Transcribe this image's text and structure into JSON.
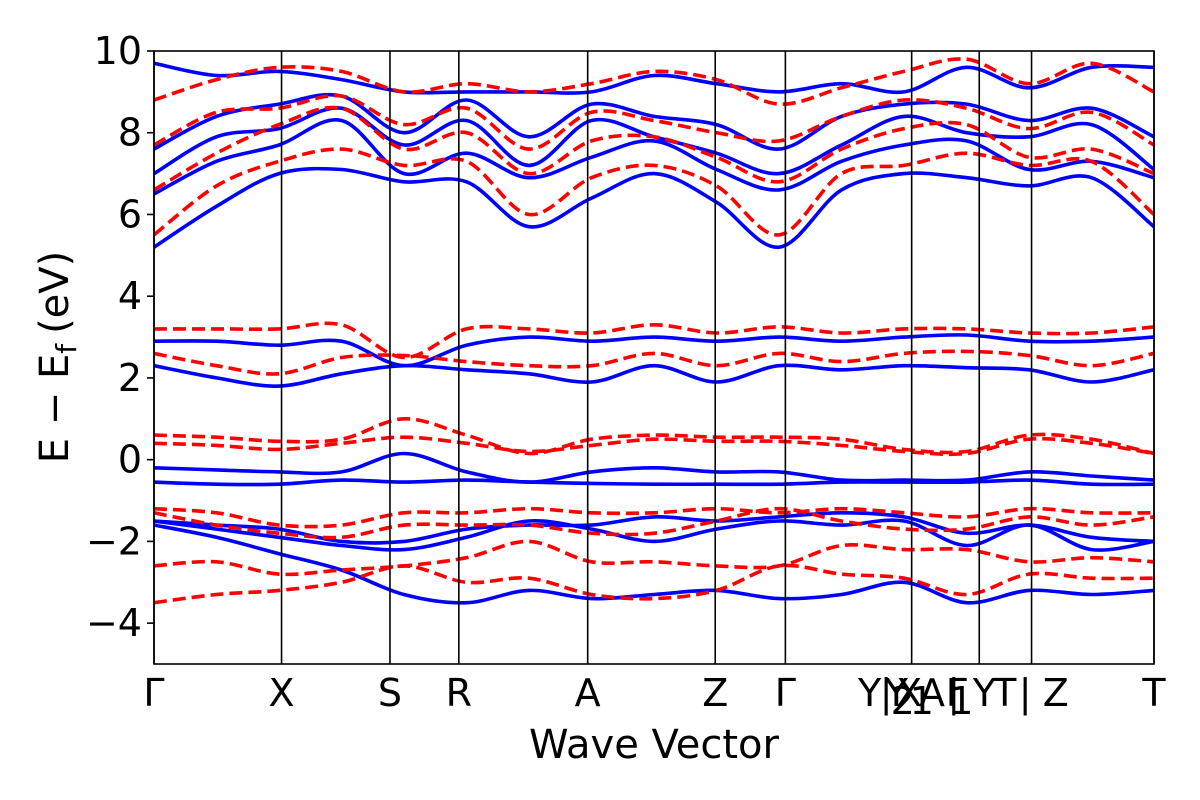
{
  "chart_data": {
    "type": "line",
    "xlabel": "Wave Vector",
    "ylabel": "E − E",
    "ylabel_sub": "f",
    "ylabel_unit": "(eV)",
    "ylim": [
      -5,
      10
    ],
    "y_ticks": [
      -4,
      -2,
      0,
      2,
      4,
      6,
      8,
      10
    ],
    "y_tick_labels": [
      "−4",
      "−2",
      "0",
      "2",
      "4",
      "6",
      "8",
      "10"
    ],
    "k_points": [
      {
        "label": "Γ",
        "x": 0.0
      },
      {
        "label": "X",
        "x": 1.0
      },
      {
        "label": "S",
        "x": 1.85
      },
      {
        "label": "R",
        "x": 2.39
      },
      {
        "label": "A",
        "x": 3.4
      },
      {
        "label": "Z",
        "x": 4.4
      },
      {
        "label": "Γ",
        "x": 4.95
      },
      {
        "label": "Y",
        "x": 5.61
      },
      {
        "label": "|",
        "x": 5.74
      },
      {
        "label": "Y",
        "x": 5.82
      },
      {
        "label": "2",
        "x": 5.87
      },
      {
        "label": "X",
        "x": 5.92
      },
      {
        "label": "1",
        "x": 6.02
      },
      {
        "label": "A",
        "x": 6.1
      },
      {
        "label": "Γ",
        "x": 6.29
      },
      {
        "label": "1",
        "x": 6.33
      },
      {
        "label": "|",
        "x": 6.27
      },
      {
        "label": "Y",
        "x": 6.51
      },
      {
        "label": "T",
        "x": 6.67
      },
      {
        "label": "|",
        "x": 6.83
      },
      {
        "label": "Z",
        "x": 7.07
      },
      {
        "label": "T",
        "x": 7.84
      }
    ],
    "vlines": [
      0.0,
      1.0,
      1.85,
      2.39,
      3.4,
      4.4,
      4.95,
      5.94,
      6.47,
      6.88,
      7.84
    ],
    "segment_breaks": [
      6.88
    ],
    "xlim": [
      0.0,
      7.84
    ],
    "colors": {
      "series_a": "#0000ff",
      "series_b": "#ff0000",
      "vlines": "#000000"
    },
    "series": [
      {
        "style": "solid",
        "color": "#0000ff",
        "bands": [
          [
            -1.6,
            -1.9,
            -2.3,
            -2.7,
            -3.3,
            -3.5,
            -3.2,
            -3.4,
            -3.3,
            -3.2,
            -3.4,
            -3.3,
            -3.0,
            -3.5,
            -3.2,
            -3.3,
            -3.2
          ],
          [
            -1.5,
            -1.7,
            -1.9,
            -2.1,
            -2.2,
            -1.9,
            -1.5,
            -1.7,
            -2.0,
            -1.7,
            -1.5,
            -1.6,
            -1.5,
            -2.1,
            -1.6,
            -2.2,
            -2.0
          ],
          [
            -1.5,
            -1.6,
            -1.7,
            -2.0,
            -2.0,
            -1.7,
            -1.6,
            -1.6,
            -1.4,
            -1.5,
            -1.4,
            -1.3,
            -1.4,
            -1.8,
            -1.6,
            -1.9,
            -2.0
          ],
          [
            -0.55,
            -0.6,
            -0.6,
            -0.5,
            -0.55,
            -0.5,
            -0.55,
            -0.58,
            -0.6,
            -0.6,
            -0.6,
            -0.55,
            -0.55,
            -0.55,
            -0.5,
            -0.6,
            -0.6
          ],
          [
            -0.2,
            -0.25,
            -0.3,
            -0.3,
            0.15,
            -0.3,
            -0.55,
            -0.3,
            -0.2,
            -0.3,
            -0.3,
            -0.5,
            -0.5,
            -0.5,
            -0.3,
            -0.4,
            -0.5
          ],
          [
            2.3,
            2.0,
            1.8,
            2.1,
            2.3,
            2.2,
            2.1,
            1.9,
            2.3,
            1.9,
            2.3,
            2.2,
            2.3,
            2.25,
            2.2,
            1.9,
            2.2
          ],
          [
            2.9,
            2.9,
            2.8,
            2.9,
            2.3,
            2.8,
            3.0,
            2.9,
            3.0,
            2.9,
            3.0,
            2.9,
            3.0,
            3.05,
            2.9,
            2.9,
            3.0
          ],
          [
            5.2,
            6.2,
            7.0,
            7.1,
            6.8,
            6.8,
            5.7,
            6.4,
            7.0,
            6.3,
            5.2,
            6.6,
            7.0,
            6.9,
            6.7,
            6.9,
            5.7
          ],
          [
            6.5,
            7.3,
            7.7,
            8.3,
            7.0,
            7.5,
            6.9,
            7.4,
            7.8,
            7.1,
            6.6,
            7.3,
            7.7,
            7.8,
            7.1,
            7.3,
            6.9
          ],
          [
            7.0,
            7.9,
            8.1,
            8.6,
            7.7,
            8.3,
            7.2,
            8.3,
            7.9,
            7.5,
            7.0,
            7.7,
            8.4,
            8.0,
            7.9,
            8.2,
            7.1
          ],
          [
            7.6,
            8.4,
            8.7,
            8.9,
            8.0,
            8.8,
            7.9,
            8.7,
            8.4,
            8.2,
            7.6,
            8.4,
            8.7,
            8.7,
            8.3,
            8.6,
            7.9
          ],
          [
            9.7,
            9.4,
            9.5,
            9.3,
            9.0,
            9.0,
            9.0,
            9.0,
            9.4,
            9.2,
            9.0,
            9.2,
            9.0,
            9.6,
            9.1,
            9.6,
            9.6
          ]
        ]
      },
      {
        "style": "dashed",
        "color": "#ff0000",
        "bands": [
          [
            -3.5,
            -3.3,
            -3.2,
            -3.0,
            -2.6,
            -3.0,
            -2.9,
            -3.3,
            -3.4,
            -3.2,
            -2.6,
            -2.8,
            -2.9,
            -3.3,
            -2.8,
            -2.9,
            -2.9
          ],
          [
            -2.6,
            -2.5,
            -2.8,
            -2.7,
            -2.6,
            -2.4,
            -2.0,
            -2.5,
            -2.5,
            -2.6,
            -2.6,
            -2.1,
            -2.2,
            -2.2,
            -2.5,
            -2.4,
            -2.5
          ],
          [
            -1.3,
            -1.6,
            -1.8,
            -1.9,
            -1.6,
            -1.6,
            -1.6,
            -1.8,
            -1.8,
            -1.5,
            -1.2,
            -1.5,
            -1.7,
            -1.7,
            -1.4,
            -1.6,
            -1.4
          ],
          [
            -1.2,
            -1.3,
            -1.6,
            -1.6,
            -1.3,
            -1.3,
            -1.2,
            -1.3,
            -1.3,
            -1.2,
            -1.3,
            -1.2,
            -1.3,
            -1.4,
            -1.2,
            -1.3,
            -1.3
          ],
          [
            0.4,
            0.35,
            0.25,
            0.4,
            0.55,
            0.4,
            0.2,
            0.35,
            0.5,
            0.45,
            0.45,
            0.35,
            0.2,
            0.15,
            0.5,
            0.4,
            0.15
          ],
          [
            0.6,
            0.55,
            0.45,
            0.5,
            1.0,
            0.6,
            0.15,
            0.5,
            0.6,
            0.55,
            0.55,
            0.5,
            0.25,
            0.2,
            0.6,
            0.5,
            0.15
          ],
          [
            2.6,
            2.3,
            2.1,
            2.5,
            2.55,
            2.4,
            2.3,
            2.3,
            2.6,
            2.3,
            2.6,
            2.4,
            2.6,
            2.65,
            2.55,
            2.3,
            2.6
          ],
          [
            3.2,
            3.2,
            3.2,
            3.3,
            2.5,
            3.2,
            3.2,
            3.1,
            3.3,
            3.1,
            3.25,
            3.1,
            3.2,
            3.2,
            3.1,
            3.1,
            3.25
          ],
          [
            5.5,
            6.7,
            7.3,
            7.6,
            7.2,
            7.3,
            6.0,
            6.9,
            7.2,
            6.7,
            5.5,
            7.0,
            7.2,
            7.5,
            7.2,
            7.3,
            6.0
          ],
          [
            6.6,
            7.5,
            8.2,
            8.6,
            7.6,
            8.0,
            7.0,
            7.8,
            7.9,
            7.4,
            6.8,
            7.6,
            8.1,
            8.2,
            7.4,
            7.6,
            7.0
          ],
          [
            7.7,
            8.5,
            8.6,
            8.9,
            8.2,
            8.6,
            7.6,
            8.5,
            8.3,
            8.0,
            7.8,
            8.4,
            8.8,
            8.6,
            8.1,
            8.5,
            7.7
          ],
          [
            8.8,
            9.3,
            9.6,
            9.5,
            9.0,
            9.2,
            9.0,
            9.2,
            9.5,
            9.3,
            8.7,
            9.1,
            9.5,
            9.8,
            9.2,
            9.7,
            9.0
          ]
        ]
      }
    ]
  }
}
